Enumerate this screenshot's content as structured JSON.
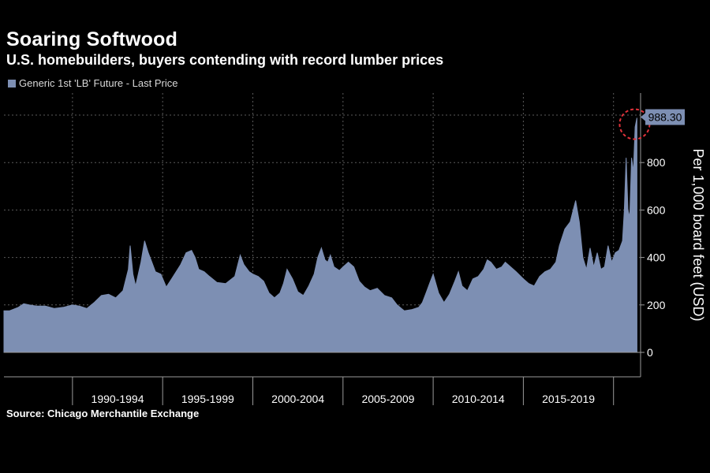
{
  "chart_data": {
    "type": "area",
    "title": "Soaring Softwood",
    "subtitle": "U.S. homebuilders, buyers contending with record lumber prices",
    "ylabel": "Per 1,000 board feet (USD)",
    "xlabel": "",
    "source": "Source: Chicago Merchantile Exchange",
    "ylim": [
      0,
      1000
    ],
    "yticks": [
      0,
      200,
      400,
      600,
      800
    ],
    "xlim": [
      1986.2,
      2021.5
    ],
    "x_period_labels": [
      "1990-1994",
      "1995-1999",
      "2000-2004",
      "2005-2009",
      "2010-2014",
      "2015-2019"
    ],
    "grid": true,
    "legend_position": "top-left",
    "series": [
      {
        "name": "Generic 1st 'LB' Future - Last Price",
        "color": "#7d8fb3",
        "last_value_label": "988.30",
        "x": [
          1986.2,
          1986.5,
          1987.0,
          1987.3,
          1987.6,
          1988.0,
          1988.5,
          1989.0,
          1989.5,
          1990.0,
          1990.4,
          1990.8,
          1991.2,
          1991.6,
          1992.0,
          1992.4,
          1992.8,
          1993.1,
          1993.2,
          1993.35,
          1993.5,
          1993.8,
          1994.0,
          1994.2,
          1994.4,
          1994.6,
          1994.9,
          1995.2,
          1995.5,
          1996.0,
          1996.3,
          1996.6,
          1996.8,
          1997.0,
          1997.3,
          1997.6,
          1998.0,
          1998.5,
          1999.0,
          1999.3,
          1999.5,
          1999.8,
          2000.0,
          2000.3,
          2000.6,
          2000.9,
          2001.2,
          2001.5,
          2001.7,
          2001.9,
          2002.2,
          2002.5,
          2002.8,
          2003.1,
          2003.4,
          2003.6,
          2003.8,
          2004.0,
          2004.15,
          2004.3,
          2004.5,
          2004.8,
          2005.0,
          2005.3,
          2005.6,
          2005.9,
          2006.2,
          2006.5,
          2006.9,
          2007.3,
          2007.7,
          2008.0,
          2008.4,
          2008.8,
          2009.0,
          2009.2,
          2009.4,
          2009.6,
          2009.8,
          2010.0,
          2010.3,
          2010.6,
          2010.9,
          2011.2,
          2011.4,
          2011.6,
          2011.9,
          2012.2,
          2012.5,
          2012.8,
          2013.0,
          2013.2,
          2013.5,
          2013.8,
          2014.0,
          2014.3,
          2014.6,
          2015.0,
          2015.3,
          2015.6,
          2015.9,
          2016.2,
          2016.5,
          2016.8,
          2017.0,
          2017.3,
          2017.6,
          2017.9,
          2018.1,
          2018.3,
          2018.5,
          2018.7,
          2018.9,
          2019.1,
          2019.3,
          2019.5,
          2019.7,
          2019.9,
          2020.1,
          2020.3,
          2020.5,
          2020.6,
          2020.7,
          2020.8,
          2020.9,
          2021.0,
          2021.1,
          2021.2,
          2021.3
        ],
        "values": [
          175,
          175,
          190,
          205,
          200,
          195,
          195,
          185,
          190,
          200,
          195,
          185,
          210,
          240,
          245,
          230,
          260,
          350,
          450,
          330,
          280,
          380,
          470,
          420,
          380,
          340,
          330,
          275,
          310,
          370,
          420,
          430,
          400,
          350,
          340,
          320,
          295,
          290,
          320,
          410,
          370,
          340,
          330,
          320,
          300,
          250,
          230,
          250,
          290,
          350,
          310,
          255,
          240,
          280,
          330,
          400,
          440,
          390,
          380,
          410,
          360,
          345,
          360,
          380,
          360,
          300,
          275,
          260,
          270,
          240,
          230,
          200,
          175,
          180,
          185,
          190,
          210,
          250,
          290,
          330,
          250,
          210,
          245,
          300,
          340,
          280,
          260,
          310,
          320,
          350,
          390,
          380,
          350,
          360,
          380,
          360,
          340,
          310,
          290,
          280,
          320,
          340,
          350,
          380,
          450,
          520,
          550,
          640,
          550,
          400,
          350,
          440,
          360,
          420,
          350,
          360,
          450,
          380,
          420,
          430,
          470,
          600,
          820,
          600,
          570,
          820,
          760,
          950,
          988.3
        ]
      }
    ]
  }
}
